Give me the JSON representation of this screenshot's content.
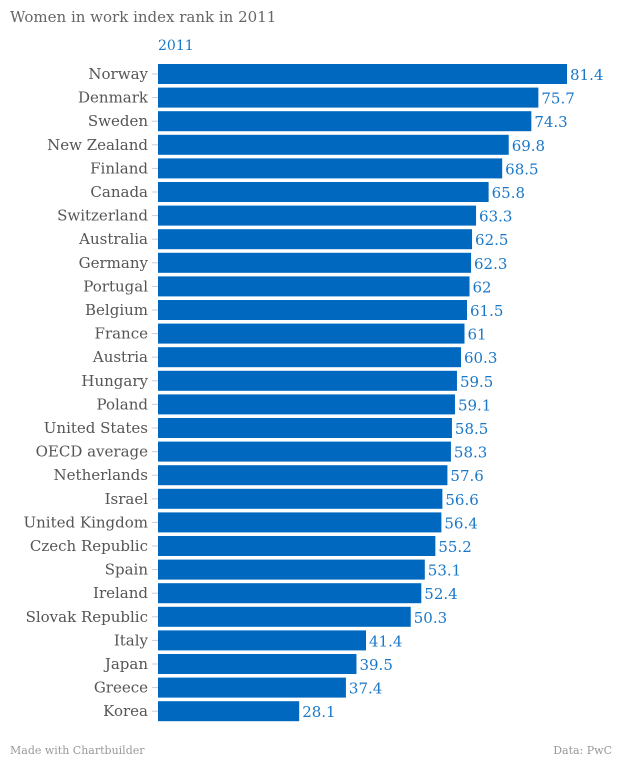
{
  "chart_data": {
    "type": "bar",
    "orientation": "horizontal",
    "title": "Women in work index rank in 2011",
    "legend": [
      "2011"
    ],
    "categories": [
      "Norway",
      "Denmark",
      "Sweden",
      "New Zealand",
      "Finland",
      "Canada",
      "Switzerland",
      "Australia",
      "Germany",
      "Portugal",
      "Belgium",
      "France",
      "Austria",
      "Hungary",
      "Poland",
      "United States",
      "OECD average",
      "Netherlands",
      "Israel",
      "United Kingdom",
      "Czech Republic",
      "Spain",
      "Ireland",
      "Slovak Republic",
      "Italy",
      "Japan",
      "Greece",
      "Korea"
    ],
    "series": [
      {
        "name": "2011",
        "values": [
          81.4,
          75.7,
          74.3,
          69.8,
          68.5,
          65.8,
          63.3,
          62.5,
          62.3,
          62,
          61.5,
          61,
          60.3,
          59.5,
          59.1,
          58.5,
          58.3,
          57.6,
          56.6,
          56.4,
          55.2,
          53.1,
          52.4,
          50.3,
          41.4,
          39.5,
          37.4,
          28.1
        ]
      }
    ],
    "xlim": [
      0,
      81.4
    ],
    "grid": false,
    "bar_color": "#0068be",
    "label_color": "#1a78c8"
  },
  "footer": {
    "left": "Made with Chartbuilder",
    "right": "Data: PwC"
  }
}
